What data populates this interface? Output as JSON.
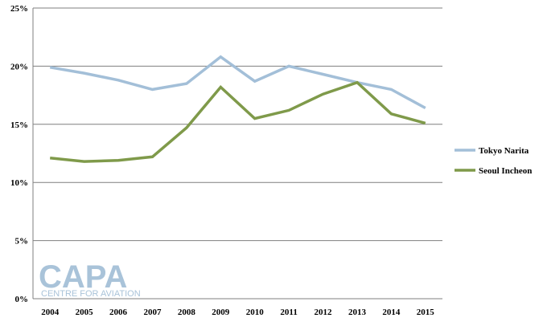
{
  "colors": {
    "tokyo": "#a3bfd8",
    "seoul": "#7f9a4a",
    "grid": "#7f7f7f",
    "watermark": "#a9c3d9"
  },
  "watermark": {
    "brand": "CAPA",
    "tagline": "CENTRE FOR AVIATION"
  },
  "chart_data": {
    "type": "line",
    "x": [
      "2004",
      "2005",
      "2006",
      "2007",
      "2008",
      "2009",
      "2010",
      "2011",
      "2012",
      "2013",
      "2014",
      "2015"
    ],
    "series": [
      {
        "name": "Tokyo Narita",
        "values": [
          19.9,
          19.4,
          18.8,
          18.0,
          18.5,
          20.8,
          18.7,
          20.0,
          19.3,
          18.6,
          18.0,
          16.4
        ]
      },
      {
        "name": "Seoul Incheon",
        "values": [
          12.1,
          11.8,
          11.9,
          12.2,
          14.7,
          18.2,
          15.5,
          16.2,
          17.6,
          18.6,
          15.9,
          15.1
        ]
      }
    ],
    "y_ticks": [
      "0%",
      "5%",
      "10%",
      "15%",
      "20%",
      "25%"
    ],
    "ylim": [
      0,
      25
    ],
    "y_unit": "%",
    "grid": true,
    "legend_position": "right"
  }
}
